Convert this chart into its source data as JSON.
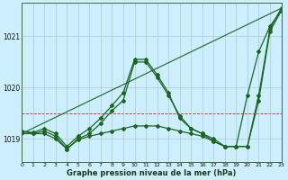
{
  "xlabel": "Graphe pression niveau de la mer (hPa)",
  "background_color": "#cceeff",
  "grid_color": "#aacccc",
  "line_color": "#1a6620",
  "red_line_color": "#cc0000",
  "xmin": 0,
  "xmax": 23,
  "ymin": 1018.55,
  "ymax": 1021.65,
  "yticks": [
    1019,
    1020,
    1021
  ],
  "xticks": [
    0,
    1,
    2,
    3,
    4,
    5,
    6,
    7,
    8,
    9,
    10,
    11,
    12,
    13,
    14,
    15,
    16,
    17,
    18,
    19,
    20,
    21,
    22,
    23
  ],
  "red_hline": 1019.5,
  "series": [
    {
      "x": [
        0,
        23
      ],
      "y": [
        1019.1,
        1021.55
      ],
      "marker": null,
      "markersize": 0,
      "linewidth": 0.8
    },
    {
      "x": [
        0,
        1,
        2,
        3,
        4,
        5,
        6,
        7,
        8,
        9,
        10,
        11,
        12,
        13,
        14,
        15,
        16,
        17,
        18,
        19,
        20,
        21,
        22,
        23
      ],
      "y": [
        1019.1,
        1019.1,
        1019.15,
        1019.05,
        1018.8,
        1019.0,
        1019.1,
        1019.3,
        1019.55,
        1019.75,
        1020.5,
        1020.5,
        1020.2,
        1019.85,
        1019.45,
        1019.2,
        1019.1,
        1019.0,
        1018.85,
        1018.85,
        1018.85,
        1019.75,
        1021.1,
        1021.5
      ],
      "marker": "D",
      "markersize": 2.0,
      "linewidth": 0.9
    },
    {
      "x": [
        0,
        1,
        2,
        3,
        4,
        5,
        6,
        7,
        8,
        9,
        10,
        11,
        12,
        13,
        14,
        15,
        16,
        17,
        18,
        19,
        20,
        21,
        22,
        23
      ],
      "y": [
        1019.15,
        1019.1,
        1019.1,
        1019.0,
        1018.8,
        1018.98,
        1019.05,
        1019.1,
        1019.15,
        1019.2,
        1019.25,
        1019.25,
        1019.25,
        1019.2,
        1019.15,
        1019.1,
        1019.05,
        1018.95,
        1018.85,
        1018.85,
        1019.85,
        1020.7,
        1021.2,
        1021.5
      ],
      "marker": "D",
      "markersize": 2.0,
      "linewidth": 0.9
    },
    {
      "x": [
        0,
        1,
        2,
        3,
        4,
        5,
        6,
        7,
        8,
        9,
        10,
        11,
        12,
        13,
        14,
        15,
        16,
        17,
        18,
        19,
        20,
        21,
        22,
        23
      ],
      "y": [
        1019.15,
        1019.12,
        1019.2,
        1019.1,
        1018.85,
        1019.05,
        1019.2,
        1019.4,
        1019.65,
        1019.9,
        1020.55,
        1020.55,
        1020.25,
        1019.9,
        1019.4,
        1019.2,
        1019.1,
        1018.95,
        1018.85,
        1018.85,
        1018.85,
        1019.85,
        1021.15,
        1021.55
      ],
      "marker": "D",
      "markersize": 2.0,
      "linewidth": 0.9
    }
  ]
}
